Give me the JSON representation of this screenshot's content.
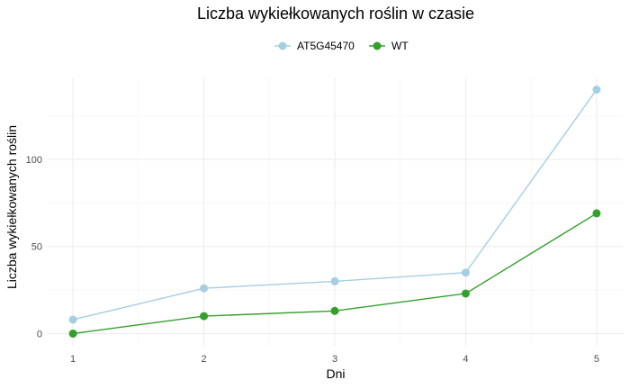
{
  "chart_data": {
    "type": "line",
    "title": "Liczba wykiełkowanych roślin w czasie",
    "xlabel": "Dni",
    "ylabel": "Liczba wykiełkowanych roślin",
    "x": [
      1,
      2,
      3,
      4,
      5
    ],
    "xlim": [
      1,
      5
    ],
    "ylim": [
      0,
      140
    ],
    "yticks": [
      0,
      50,
      100
    ],
    "grid": true,
    "legend_position": "top",
    "series": [
      {
        "name": "AT5G45470",
        "color": "#a6cee3",
        "values": [
          8,
          26,
          30,
          35,
          140
        ]
      },
      {
        "name": "WT",
        "color": "#33a02c",
        "values": [
          0,
          10,
          13,
          23,
          69
        ]
      }
    ]
  }
}
